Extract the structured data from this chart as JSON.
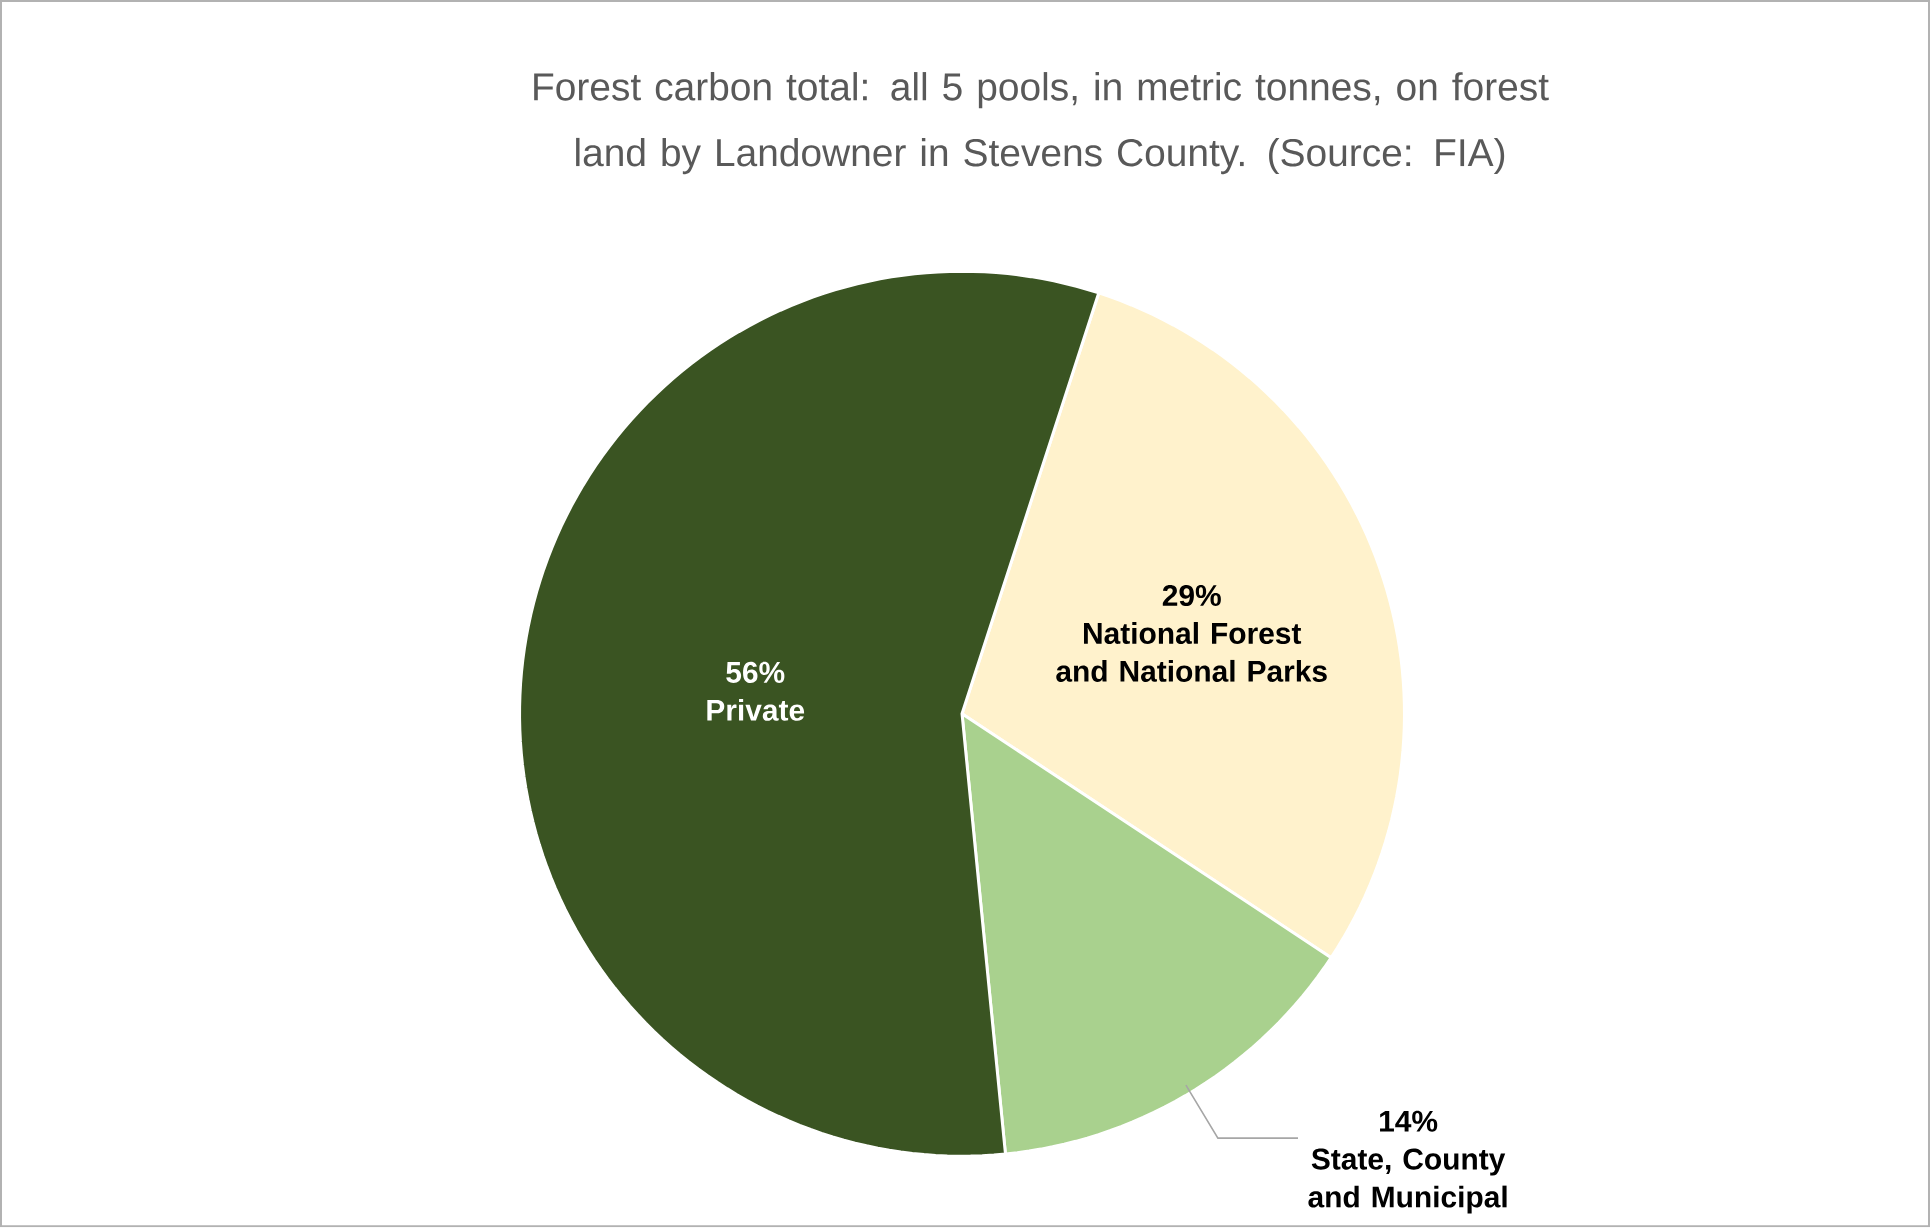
{
  "chart_data": {
    "type": "pie",
    "title": "Forest carbon total: all 5 pools, in metric tonnes, on forest land by Landowner in Stevens County.  (Source: FIA)",
    "categories": [
      "National Forest and National Parks",
      "State, County and Municipal",
      "Private"
    ],
    "values": [
      29,
      14,
      56
    ],
    "value_labels": [
      "29%",
      "14%",
      "56%"
    ],
    "colors": [
      "#fff2cc",
      "#a9d18e",
      "#3a5422"
    ]
  }
}
